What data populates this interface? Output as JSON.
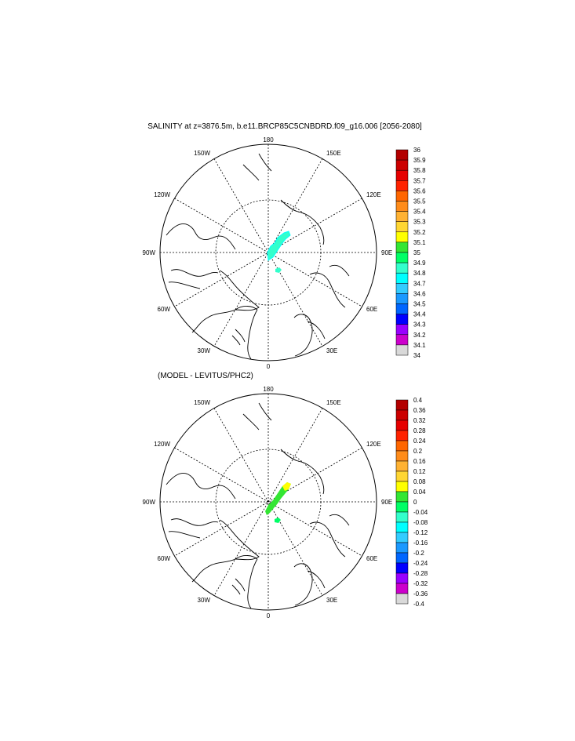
{
  "figure_title": "SALINITY at z=3876.5m, b.e11.BRCP85C5CNBDRD.f09_g16.006 [2056-2080]",
  "panel2_title": "(MODEL - LEVITUS/PHC2)",
  "lon_labels": {
    "top": "180",
    "ul": "150W",
    "ur": "150E",
    "ml": "120W",
    "mr": "120E",
    "l": "90W",
    "r": "90E",
    "ll": "60W",
    "lr": "60E",
    "bl": "30W",
    "br": "30E",
    "bottom": "0"
  },
  "colorbar1": {
    "labels": [
      "36",
      "35.9",
      "35.8",
      "35.7",
      "35.6",
      "35.5",
      "35.4",
      "35.3",
      "35.2",
      "35.1",
      "35",
      "34.9",
      "34.8",
      "34.7",
      "34.6",
      "34.5",
      "34.4",
      "34.3",
      "34.2",
      "34.1",
      "34"
    ],
    "colors": [
      "#b30000",
      "#cc0000",
      "#e60000",
      "#ff2200",
      "#ff6600",
      "#ff8c1a",
      "#ffb233",
      "#ffd633",
      "#ffff00",
      "#33e633",
      "#00ff66",
      "#33ffcc",
      "#00ffff",
      "#33ccff",
      "#1a99ff",
      "#0066ff",
      "#0000ff",
      "#9900ff",
      "#cc00cc",
      "#d9d9d9",
      "#7a7a7a"
    ]
  },
  "colorbar2": {
    "labels": [
      "0.4",
      "0.36",
      "0.32",
      "0.28",
      "0.24",
      "0.2",
      "0.16",
      "0.12",
      "0.08",
      "0.04",
      "0",
      "-0.04",
      "-0.08",
      "-0.12",
      "-0.16",
      "-0.2",
      "-0.24",
      "-0.28",
      "-0.32",
      "-0.36",
      "-0.4"
    ],
    "colors": [
      "#b30000",
      "#cc0000",
      "#e60000",
      "#ff2200",
      "#ff6600",
      "#ff8c1a",
      "#ffb233",
      "#ffd633",
      "#ffff00",
      "#33e633",
      "#00ff66",
      "#33ffcc",
      "#00ffff",
      "#33ccff",
      "#1a99ff",
      "#0066ff",
      "#0000ff",
      "#9900ff",
      "#cc00cc",
      "#d9d9d9",
      "#7a7a7a"
    ]
  },
  "field_colors": {
    "panel1_main": "#33ffcc",
    "panel1_edge": "#00ffff",
    "panel2_main": "#33e633",
    "panel2_edge": "#ffff00",
    "panel2_low": "#00ff66"
  }
}
